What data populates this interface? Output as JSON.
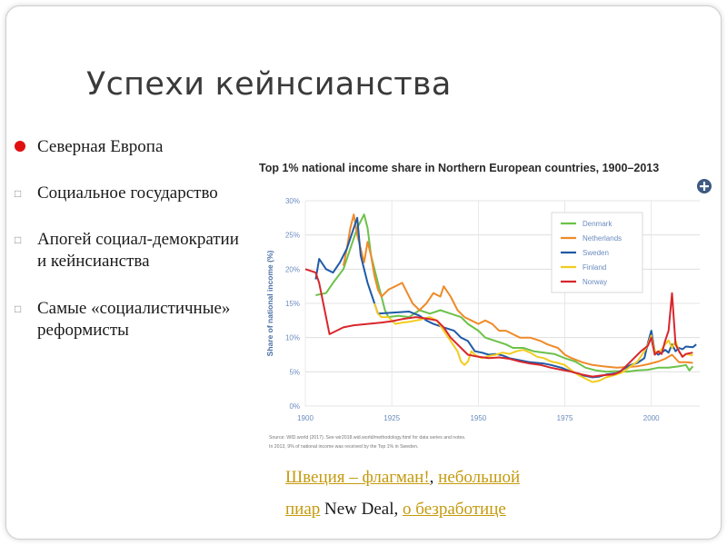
{
  "slide": {
    "title": "Успехи кейнсианства",
    "bullets": [
      {
        "text": "Северная Европа",
        "marker": "red-dot"
      },
      {
        "text": "Социальное государство",
        "marker": "box"
      },
      {
        "text": "Апогей социал-демократии и кейнсианства",
        "marker": "box"
      },
      {
        "text": "Самые «социалистичные» реформисты",
        "marker": "box"
      }
    ],
    "links": {
      "sweden": "Швеция – флагман!",
      "comma1": ", ",
      "small_pr_1": "небольшой",
      "small_pr_2": "пиар",
      "new_deal": " New Deal, ",
      "unemployment": "о безработице"
    },
    "link_color": "#c59a0e"
  },
  "chart_data": {
    "type": "line",
    "title": "Top 1% national income share in Northern European countries, 1900–2013",
    "xlabel": "",
    "ylabel": "Share of national income (%)",
    "xlim": [
      1900,
      2014
    ],
    "ylim": [
      0,
      30
    ],
    "xticks": [
      1900,
      1925,
      1950,
      1975,
      2000
    ],
    "xtick_labels": [
      "1900",
      "1925",
      "1950",
      "1975",
      "2000"
    ],
    "yticks": [
      0,
      5,
      10,
      15,
      20,
      25,
      30
    ],
    "ytick_labels": [
      "0%",
      "5%",
      "10%",
      "15%",
      "20%",
      "25%",
      "30%"
    ],
    "grid": true,
    "legend_position": "top-right",
    "source_lines": [
      "Source: WID.world (2017). See wir2018.wid.world/methodology.html for data series and notes.",
      "In 2013, 9% of national income was received by the Top 1% in Sweden."
    ],
    "series": [
      {
        "name": "Denmark",
        "color": "#6cc24a",
        "points": [
          [
            1903,
            16.2
          ],
          [
            1906,
            16.5
          ],
          [
            1908,
            18
          ],
          [
            1911,
            20
          ],
          [
            1913,
            23
          ],
          [
            1915,
            26
          ],
          [
            1917,
            28
          ],
          [
            1918,
            26
          ],
          [
            1919,
            22
          ],
          [
            1921,
            18
          ],
          [
            1922,
            16
          ],
          [
            1923,
            14
          ],
          [
            1924,
            13
          ],
          [
            1927,
            13.2
          ],
          [
            1930,
            13
          ],
          [
            1933,
            14
          ],
          [
            1936,
            13.5
          ],
          [
            1939,
            14
          ],
          [
            1942,
            13.5
          ],
          [
            1945,
            13
          ],
          [
            1947,
            12
          ],
          [
            1950,
            11
          ],
          [
            1952,
            10
          ],
          [
            1955,
            9.5
          ],
          [
            1958,
            9
          ],
          [
            1960,
            8.5
          ],
          [
            1963,
            8.5
          ],
          [
            1966,
            8
          ],
          [
            1969,
            7.8
          ],
          [
            1972,
            7.6
          ],
          [
            1975,
            7
          ],
          [
            1978,
            6.5
          ],
          [
            1981,
            5.6
          ],
          [
            1984,
            5.2
          ],
          [
            1987,
            5
          ],
          [
            1990,
            5.1
          ],
          [
            1993,
            5
          ],
          [
            1996,
            5.2
          ],
          [
            1999,
            5.3
          ],
          [
            2002,
            5.6
          ],
          [
            2005,
            5.6
          ],
          [
            2008,
            5.8
          ],
          [
            2010,
            6
          ],
          [
            2011,
            5.2
          ],
          [
            2012,
            5.8
          ]
        ]
      },
      {
        "name": "Netherlands",
        "color": "#ef8a2a",
        "points": [
          [
            1911,
            20.5
          ],
          [
            1912,
            23
          ],
          [
            1913,
            26
          ],
          [
            1914,
            28
          ],
          [
            1915,
            25
          ],
          [
            1916,
            23
          ],
          [
            1917,
            21
          ],
          [
            1918,
            24
          ],
          [
            1919,
            22
          ],
          [
            1920,
            19
          ],
          [
            1921,
            17
          ],
          [
            1922,
            16
          ],
          [
            1924,
            17
          ],
          [
            1926,
            17.5
          ],
          [
            1928,
            18
          ],
          [
            1930,
            16
          ],
          [
            1931,
            15
          ],
          [
            1933,
            14
          ],
          [
            1935,
            15
          ],
          [
            1937,
            16.5
          ],
          [
            1939,
            16
          ],
          [
            1940,
            17.5
          ],
          [
            1942,
            16
          ],
          [
            1944,
            14
          ],
          [
            1946,
            13
          ],
          [
            1948,
            12.5
          ],
          [
            1950,
            12
          ],
          [
            1952,
            12.5
          ],
          [
            1954,
            12
          ],
          [
            1956,
            11
          ],
          [
            1958,
            11
          ],
          [
            1960,
            10.5
          ],
          [
            1962,
            10
          ],
          [
            1965,
            10
          ],
          [
            1968,
            9.5
          ],
          [
            1970,
            9
          ],
          [
            1973,
            8.5
          ],
          [
            1975,
            7.5
          ],
          [
            1977,
            7
          ],
          [
            1980,
            6.4
          ],
          [
            1983,
            6
          ],
          [
            1986,
            5.8
          ],
          [
            1990,
            5.6
          ],
          [
            1993,
            5.7
          ],
          [
            1996,
            5.8
          ],
          [
            1999,
            6.1
          ],
          [
            2002,
            6.5
          ],
          [
            2004,
            6.9
          ],
          [
            2006,
            7.5
          ],
          [
            2008,
            6.4
          ],
          [
            2010,
            6.4
          ],
          [
            2012,
            6.3
          ]
        ]
      },
      {
        "name": "Sweden",
        "color": "#1f5aa6",
        "points": [
          [
            1903,
            18.5
          ],
          [
            1904,
            21.5
          ],
          [
            1906,
            20
          ],
          [
            1908,
            19.5
          ],
          [
            1910,
            21
          ],
          [
            1912,
            23
          ],
          [
            1914,
            26
          ],
          [
            1915,
            27.5
          ],
          [
            1916,
            22
          ],
          [
            1918,
            18
          ],
          [
            1920,
            15
          ],
          [
            1921,
            13.5
          ],
          [
            1924,
            13.6
          ],
          [
            1927,
            13.7
          ],
          [
            1930,
            13.8
          ],
          [
            1933,
            13.2
          ],
          [
            1935,
            12.5
          ],
          [
            1937,
            12
          ],
          [
            1940,
            11.5
          ],
          [
            1943,
            11
          ],
          [
            1945,
            10
          ],
          [
            1947,
            9.5
          ],
          [
            1949,
            8
          ],
          [
            1951,
            7.8
          ],
          [
            1953,
            7.5
          ],
          [
            1955,
            7.6
          ],
          [
            1957,
            7.4
          ],
          [
            1959,
            7
          ],
          [
            1961,
            6.8
          ],
          [
            1963,
            6.6
          ],
          [
            1965,
            6.4
          ],
          [
            1967,
            6.3
          ],
          [
            1969,
            6.2
          ],
          [
            1971,
            6
          ],
          [
            1974,
            5.6
          ],
          [
            1977,
            5
          ],
          [
            1980,
            4.5
          ],
          [
            1983,
            4.2
          ],
          [
            1985,
            4.3
          ],
          [
            1987,
            4.6
          ],
          [
            1990,
            4.8
          ],
          [
            1992,
            5.4
          ],
          [
            1994,
            6
          ],
          [
            1996,
            6.3
          ],
          [
            1998,
            7
          ],
          [
            1999,
            9.2
          ],
          [
            2000,
            11
          ],
          [
            2001,
            8
          ],
          [
            2002,
            7.5
          ],
          [
            2003,
            7.8
          ],
          [
            2004,
            8.2
          ],
          [
            2005,
            7.8
          ],
          [
            2006,
            9
          ],
          [
            2007,
            8
          ],
          [
            2008,
            8.5
          ],
          [
            2009,
            8.3
          ],
          [
            2010,
            8.7
          ],
          [
            2012,
            8.6
          ],
          [
            2013,
            9
          ]
        ]
      },
      {
        "name": "Finland",
        "color": "#f2cc1f",
        "points": [
          [
            1920,
            15
          ],
          [
            1921,
            13.5
          ],
          [
            1922,
            13
          ],
          [
            1924,
            13
          ],
          [
            1926,
            12
          ],
          [
            1928,
            12.2
          ],
          [
            1930,
            12.3
          ],
          [
            1933,
            12.6
          ],
          [
            1936,
            13
          ],
          [
            1938,
            12.5
          ],
          [
            1940,
            11
          ],
          [
            1942,
            9.5
          ],
          [
            1944,
            8
          ],
          [
            1945,
            6.5
          ],
          [
            1946,
            6
          ],
          [
            1947,
            6.5
          ],
          [
            1948,
            8
          ],
          [
            1949,
            7.5
          ],
          [
            1951,
            7
          ],
          [
            1953,
            7.3
          ],
          [
            1955,
            7.5
          ],
          [
            1957,
            7.8
          ],
          [
            1959,
            7.6
          ],
          [
            1961,
            8
          ],
          [
            1963,
            8.2
          ],
          [
            1965,
            7.8
          ],
          [
            1967,
            7.2
          ],
          [
            1969,
            7
          ],
          [
            1971,
            6.5
          ],
          [
            1973,
            6.3
          ],
          [
            1975,
            6
          ],
          [
            1977,
            5.2
          ],
          [
            1979,
            4.5
          ],
          [
            1981,
            4
          ],
          [
            1983,
            3.5
          ],
          [
            1985,
            3.7
          ],
          [
            1987,
            4.2
          ],
          [
            1990,
            4.6
          ],
          [
            1992,
            5
          ],
          [
            1994,
            5.8
          ],
          [
            1996,
            6.5
          ],
          [
            1998,
            8
          ],
          [
            1999,
            9
          ],
          [
            2000,
            10.3
          ],
          [
            2001,
            8
          ],
          [
            2002,
            7.8
          ],
          [
            2003,
            8.3
          ],
          [
            2004,
            9
          ],
          [
            2005,
            9.6
          ],
          [
            2006,
            8.5
          ],
          [
            2007,
            9.5
          ],
          [
            2008,
            8
          ],
          [
            2009,
            7.2
          ],
          [
            2010,
            7.6
          ],
          [
            2012,
            7.4
          ]
        ]
      },
      {
        "name": "Norway",
        "color": "#d8262c",
        "points": [
          [
            1900,
            20
          ],
          [
            1903,
            19.5
          ],
          [
            1904,
            18
          ],
          [
            1906,
            13
          ],
          [
            1907,
            10.5
          ],
          [
            1909,
            11
          ],
          [
            1911,
            11.5
          ],
          [
            1914,
            11.8
          ],
          [
            1918,
            12
          ],
          [
            1922,
            12.2
          ],
          [
            1925,
            12.4
          ],
          [
            1928,
            12.7
          ],
          [
            1932,
            13
          ],
          [
            1935,
            12.8
          ],
          [
            1938,
            12.5
          ],
          [
            1940,
            11.5
          ],
          [
            1942,
            10
          ],
          [
            1945,
            8.5
          ],
          [
            1947,
            7.5
          ],
          [
            1950,
            7.2
          ],
          [
            1953,
            7
          ],
          [
            1956,
            7.1
          ],
          [
            1959,
            6.9
          ],
          [
            1962,
            6.5
          ],
          [
            1965,
            6.2
          ],
          [
            1968,
            6
          ],
          [
            1971,
            5.6
          ],
          [
            1974,
            5.3
          ],
          [
            1977,
            5
          ],
          [
            1980,
            4.6
          ],
          [
            1983,
            4.3
          ],
          [
            1986,
            4.5
          ],
          [
            1989,
            4.6
          ],
          [
            1991,
            5
          ],
          [
            1993,
            6
          ],
          [
            1995,
            7
          ],
          [
            1997,
            8
          ],
          [
            1999,
            8.8
          ],
          [
            2000,
            10
          ],
          [
            2001,
            7.5
          ],
          [
            2002,
            8
          ],
          [
            2003,
            7.6
          ],
          [
            2004,
            9.5
          ],
          [
            2005,
            11
          ],
          [
            2006,
            16.5
          ],
          [
            2007,
            9
          ],
          [
            2008,
            8
          ],
          [
            2009,
            7.2
          ],
          [
            2010,
            7.6
          ],
          [
            2012,
            7.8
          ]
        ]
      }
    ]
  }
}
